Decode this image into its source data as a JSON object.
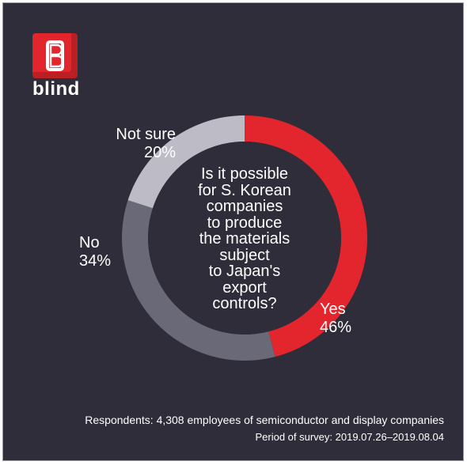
{
  "brand": {
    "name": "blind",
    "color": "#e3262d"
  },
  "chart_data": {
    "type": "pie",
    "title": "Is it possible for S. Korean companies to produce the materials subject to Japan's export controls?",
    "title_lines": [
      "Is it possible",
      "for S. Korean",
      "companies",
      "to produce",
      "the materials",
      "subject",
      "to Japan's",
      "export",
      "controls?"
    ],
    "slices": [
      {
        "label": "Yes",
        "value": 46,
        "display": "46%",
        "color": "#e3262d"
      },
      {
        "label": "No",
        "value": 34,
        "display": "34%",
        "color": "#6a6978"
      },
      {
        "label": "Not sure",
        "value": 20,
        "display": "20%",
        "color": "#bdbcc6"
      }
    ]
  },
  "footer": {
    "respondents": "Respondents: 4,308 employees of semiconductor and display companies",
    "period": "Period of survey: 2019.07.26–2019.08.04"
  }
}
